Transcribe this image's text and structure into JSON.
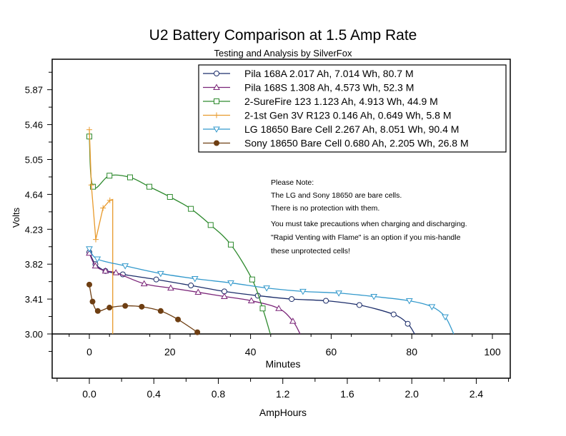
{
  "chart_data": {
    "type": "line",
    "title": "U2 Battery Comparison at 1.5 Amp Rate",
    "subtitle": "Testing and Analysis by SilverFox",
    "xlabel": "Minutes",
    "x2label": "AmpHours",
    "ylabel": "Volts",
    "xlim": [
      -9.2,
      104.6
    ],
    "ylim": [
      3.0,
      6.2
    ],
    "x_ticks": [
      "0",
      "20",
      "40",
      "60",
      "80",
      "100"
    ],
    "x2_ticks": [
      "0.0",
      "0.4",
      "0.8",
      "1.2",
      "1.6",
      "2.0",
      "2.4"
    ],
    "y_ticks": [
      "3.00",
      "3.41",
      "3.82",
      "4.23",
      "4.64",
      "5.05",
      "5.46",
      "5.87"
    ],
    "grid": false,
    "legend_position": "top-right",
    "series": [
      {
        "name": "Pila 168A 2.017 Ah, 7.014 Wh, 80.7 M",
        "color": "#1c2d6a",
        "marker": "circle",
        "x": [
          0,
          1.5,
          4,
          8.3,
          16.6,
          25.2,
          33.5,
          41.8,
          50.2,
          58.7,
          67,
          75.5,
          79,
          80.7
        ],
        "y": [
          3.96,
          3.82,
          3.74,
          3.7,
          3.64,
          3.57,
          3.5,
          3.45,
          3.41,
          3.39,
          3.34,
          3.23,
          3.12,
          3.0
        ]
      },
      {
        "name": "Pila 168S 1.308 Ah, 4.573 Wh, 52.3 M",
        "color": "#7a2478",
        "marker": "triangle-up",
        "x": [
          0,
          1.5,
          4,
          6.6,
          13.6,
          20.2,
          27,
          33.5,
          40.2,
          47,
          50.5,
          52.3
        ],
        "y": [
          3.95,
          3.8,
          3.74,
          3.72,
          3.59,
          3.54,
          3.49,
          3.44,
          3.39,
          3.3,
          3.15,
          3.0
        ]
      },
      {
        "name": "2-SureFire 123 1.123 Ah, 4.913 Wh, 44.9 M",
        "color": "#2e8a2e",
        "marker": "square",
        "x": [
          0,
          0.9,
          5,
          10.1,
          14.9,
          20,
          25.2,
          30.1,
          35.1,
          40.4,
          43,
          44.9
        ],
        "y": [
          5.32,
          4.73,
          4.86,
          4.84,
          4.73,
          4.61,
          4.47,
          4.28,
          4.05,
          3.64,
          3.3,
          3.0
        ]
      },
      {
        "name": "2-1st Gen 3V R123 0.146 Ah, 0.649 Wh, 5.8 M",
        "color": "#e89a2c",
        "marker": "plus",
        "x": [
          0,
          0.5,
          1.6,
          3.4,
          5.1,
          5.8,
          5.8
        ],
        "y": [
          5.4,
          4.75,
          4.11,
          4.48,
          4.57,
          4.58,
          3.0
        ]
      },
      {
        "name": "LG 18650 Bare Cell 2.267 Ah, 8.051 Wh, 90.4 M",
        "color": "#3399cc",
        "marker": "triangle-down",
        "x": [
          0,
          2,
          8.9,
          17.7,
          26.2,
          35.1,
          44,
          53,
          61.9,
          70.6,
          79.4,
          85,
          88.3,
          90.4
        ],
        "y": [
          4.0,
          3.88,
          3.8,
          3.71,
          3.65,
          3.6,
          3.54,
          3.5,
          3.48,
          3.44,
          3.39,
          3.32,
          3.2,
          3.0
        ]
      },
      {
        "name": "Sony 18650 Bare Cell 0.680 Ah, 2.205 Wh, 26.8 M",
        "color": "#6e3e12",
        "marker": "filled-circle",
        "x": [
          0,
          0.8,
          2.1,
          5,
          8.9,
          13,
          17.7,
          22,
          26.8
        ],
        "y": [
          3.58,
          3.38,
          3.27,
          3.31,
          3.33,
          3.32,
          3.27,
          3.17,
          3.02
        ]
      }
    ],
    "annotation": {
      "lines": [
        "Please Note:",
        "The LG and Sony 18650 are bare cells.",
        "There is no protection with them.",
        "You must take precautions when charging and discharging.",
        "\"Rapid Venting with Flame\" is an option if you mis-handle",
        "these unprotected cells!"
      ]
    }
  }
}
